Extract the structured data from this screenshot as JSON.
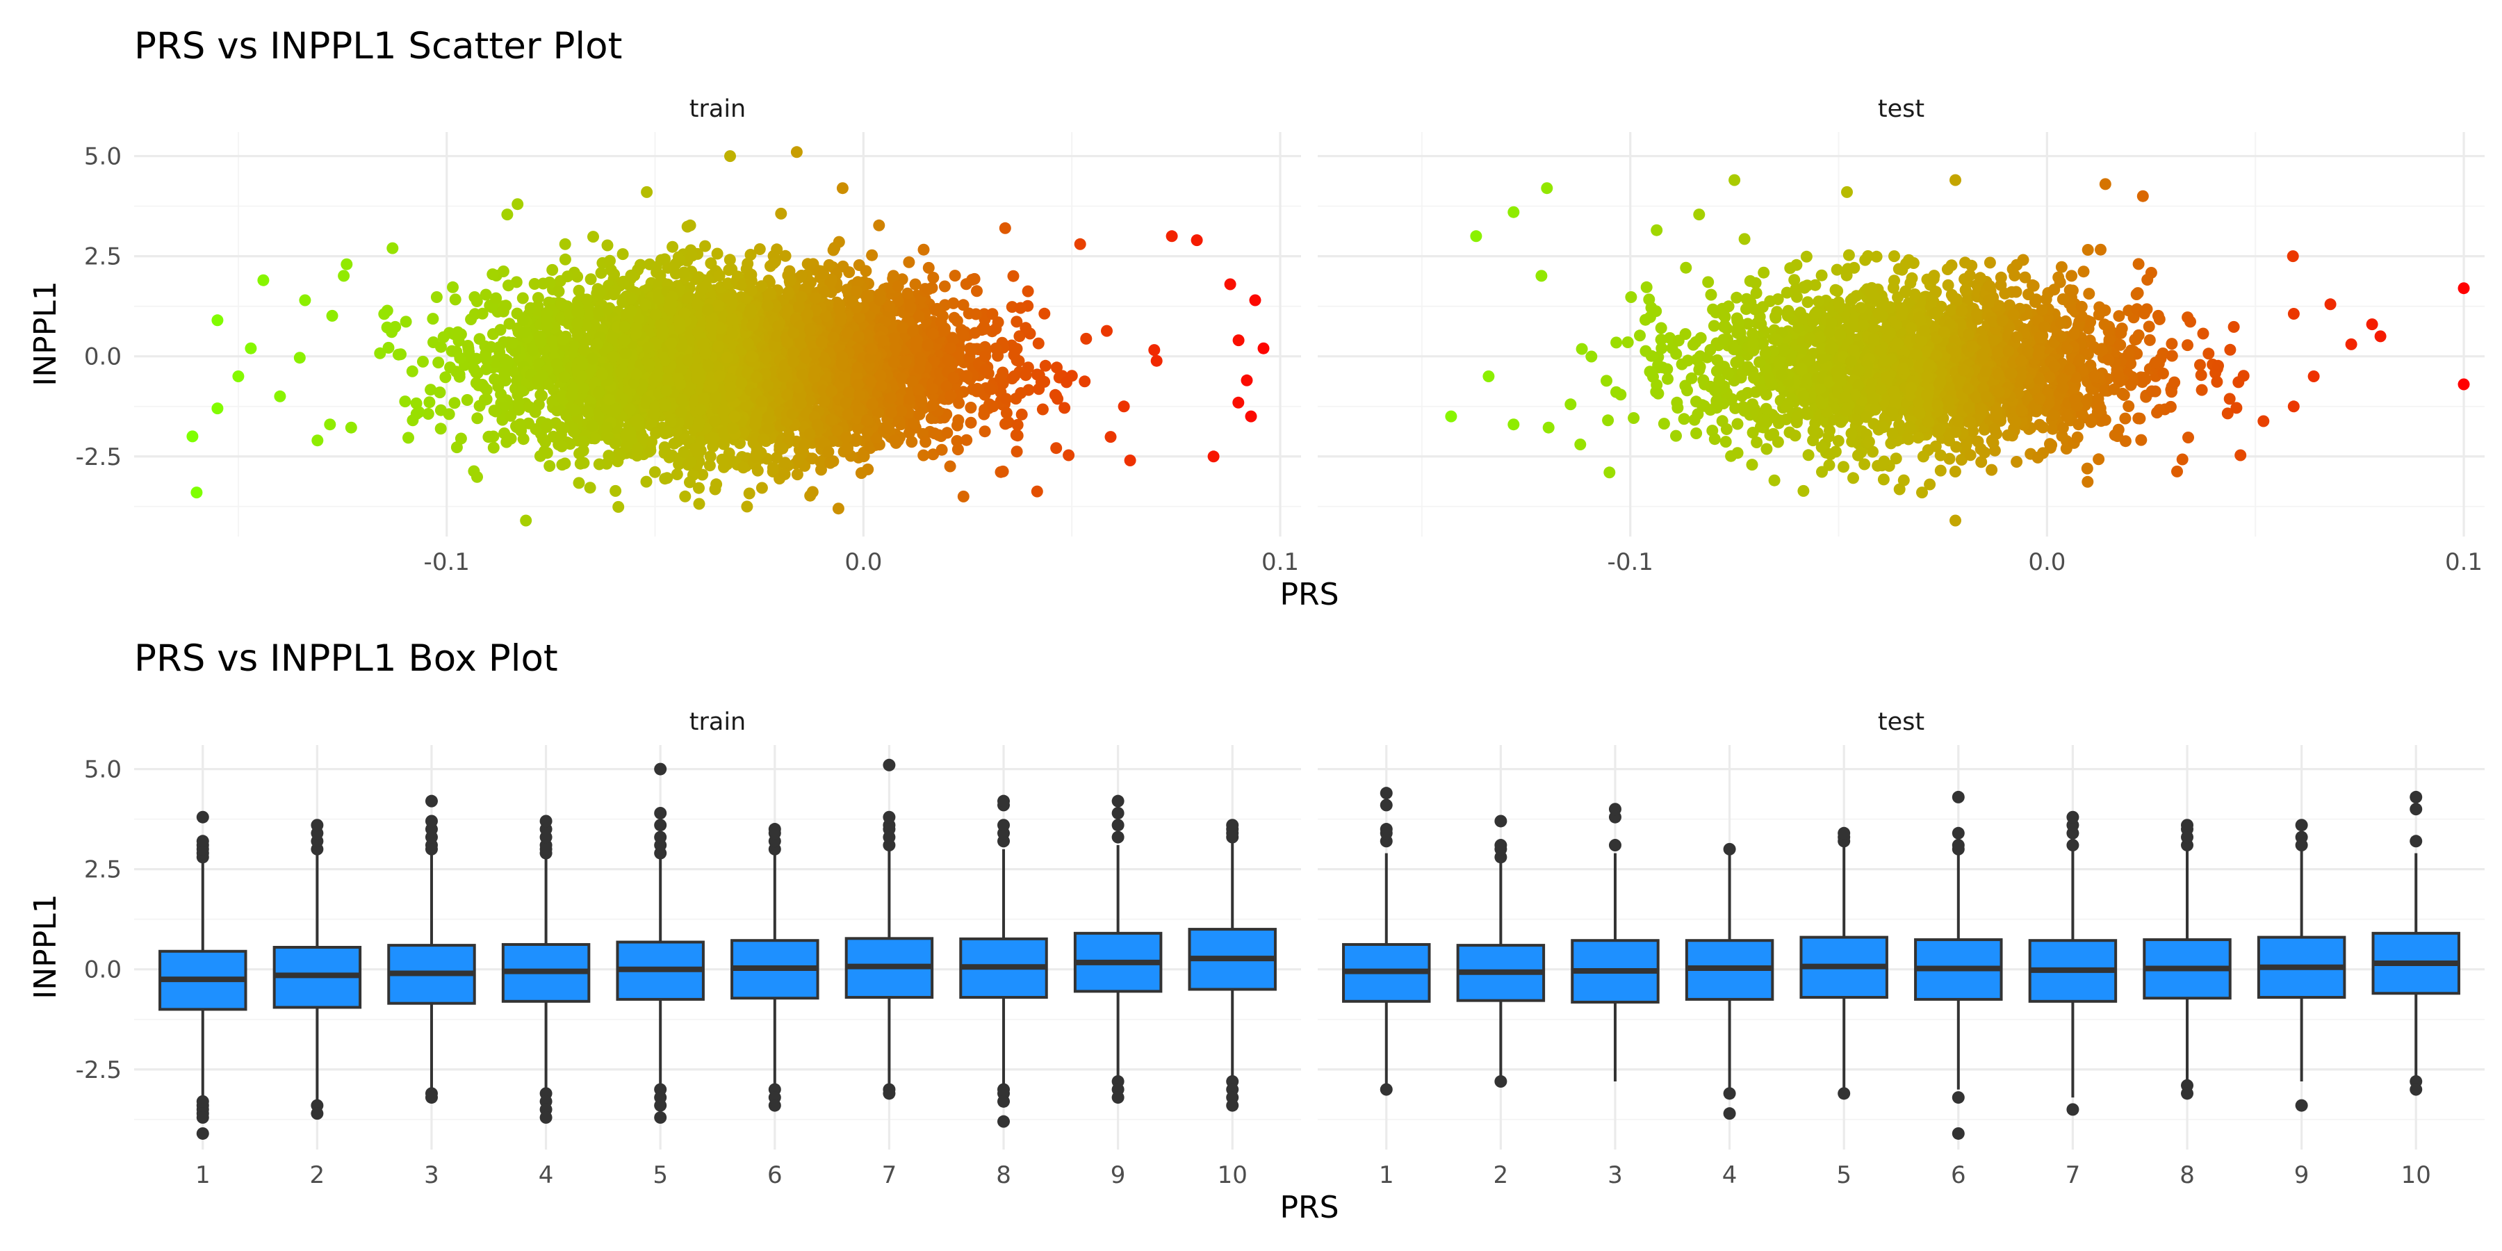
{
  "chart_data": [
    {
      "type": "scatter",
      "title": "PRS vs INPPL1 Scatter Plot",
      "xlabel": "PRS",
      "ylabel": "INPPL1",
      "xlim": [
        -0.175,
        0.105
      ],
      "ylim": [
        -4.5,
        5.6
      ],
      "x_ticks": [
        -0.1,
        0.0,
        0.1
      ],
      "x_tick_labels": [
        "-0.1",
        "0.0",
        "0.1"
      ],
      "y_ticks": [
        -2.5,
        0.0,
        2.5,
        5.0
      ],
      "y_tick_labels": [
        "-2.5",
        "0.0",
        "2.5",
        "5.0"
      ],
      "grid": true,
      "legend": "none",
      "color_scale": {
        "low": "#7fff00",
        "mid": "#c0b000",
        "high": "#ff0000"
      },
      "facets": [
        {
          "label": "train",
          "cloud": {
            "x_center": -0.03,
            "x_sd": 0.028,
            "y_center": -0.2,
            "y_sd": 1.05,
            "n_points": 5200
          },
          "points": [
            {
              "x": -0.16,
              "y": -3.4
            },
            {
              "x": -0.161,
              "y": -2.0
            },
            {
              "x": -0.155,
              "y": 0.9
            },
            {
              "x": -0.155,
              "y": -1.3
            },
            {
              "x": -0.15,
              "y": -0.5
            },
            {
              "x": -0.147,
              "y": 0.2
            },
            {
              "x": -0.144,
              "y": 1.9
            },
            {
              "x": -0.14,
              "y": -1.0
            },
            {
              "x": -0.134,
              "y": 1.4
            },
            {
              "x": -0.131,
              "y": -2.1
            },
            {
              "x": -0.128,
              "y": -1.7
            },
            {
              "x": -0.124,
              "y": 2.3
            },
            {
              "x": -0.113,
              "y": 2.7
            },
            {
              "x": -0.083,
              "y": 3.8
            },
            {
              "x": -0.081,
              "y": -4.1
            },
            {
              "x": -0.052,
              "y": 4.1
            },
            {
              "x": -0.032,
              "y": 5.0
            },
            {
              "x": -0.016,
              "y": 5.1
            },
            {
              "x": -0.005,
              "y": 4.2
            },
            {
              "x": -0.006,
              "y": -3.8
            },
            {
              "x": 0.024,
              "y": -3.5
            },
            {
              "x": 0.034,
              "y": 3.2
            },
            {
              "x": 0.052,
              "y": 2.8
            },
            {
              "x": 0.064,
              "y": -2.6
            },
            {
              "x": 0.074,
              "y": 3.0
            },
            {
              "x": 0.08,
              "y": 2.9
            },
            {
              "x": 0.084,
              "y": -2.5
            },
            {
              "x": 0.088,
              "y": 1.8
            },
            {
              "x": 0.09,
              "y": 0.4
            },
            {
              "x": 0.092,
              "y": -0.6
            },
            {
              "x": 0.094,
              "y": 1.4
            },
            {
              "x": 0.093,
              "y": -1.5
            },
            {
              "x": 0.096,
              "y": 0.2
            }
          ]
        },
        {
          "label": "test",
          "cloud": {
            "x_center": -0.03,
            "x_sd": 0.027,
            "y_center": -0.2,
            "y_sd": 1.05,
            "n_points": 2300
          },
          "points": [
            {
              "x": -0.143,
              "y": -1.5
            },
            {
              "x": -0.137,
              "y": 3.0
            },
            {
              "x": -0.134,
              "y": -0.5
            },
            {
              "x": -0.128,
              "y": 3.6
            },
            {
              "x": -0.128,
              "y": -1.7
            },
            {
              "x": -0.12,
              "y": 4.2
            },
            {
              "x": -0.112,
              "y": -2.2
            },
            {
              "x": -0.105,
              "y": -2.9
            },
            {
              "x": -0.075,
              "y": 4.4
            },
            {
              "x": -0.048,
              "y": 4.1
            },
            {
              "x": -0.03,
              "y": -3.4
            },
            {
              "x": -0.022,
              "y": 4.4
            },
            {
              "x": -0.022,
              "y": -4.1
            },
            {
              "x": 0.014,
              "y": 4.3
            },
            {
              "x": 0.023,
              "y": 4.0
            },
            {
              "x": 0.059,
              "y": 2.5
            },
            {
              "x": 0.064,
              "y": -0.5
            },
            {
              "x": 0.068,
              "y": 1.3
            },
            {
              "x": 0.073,
              "y": 0.3
            },
            {
              "x": 0.078,
              "y": 0.8
            },
            {
              "x": 0.08,
              "y": 0.5
            },
            {
              "x": 0.1,
              "y": 1.7
            },
            {
              "x": 0.1,
              "y": -0.7
            }
          ]
        }
      ]
    },
    {
      "type": "box",
      "title": "PRS vs INPPL1 Box Plot",
      "xlabel": "PRS",
      "ylabel": "INPPL1",
      "categories": [
        "1",
        "2",
        "3",
        "4",
        "5",
        "6",
        "7",
        "8",
        "9",
        "10"
      ],
      "ylim": [
        -4.5,
        5.6
      ],
      "y_ticks": [
        -2.5,
        0.0,
        2.5,
        5.0
      ],
      "y_tick_labels": [
        "-2.5",
        "0.0",
        "2.5",
        "5.0"
      ],
      "grid": true,
      "fill_color": "#1e90ff",
      "facets": [
        {
          "label": "train",
          "boxes": [
            {
              "q1": -1.0,
              "median": -0.25,
              "q3": 0.45,
              "whisker_low": -3.2,
              "whisker_high": 2.7,
              "outliers": [
                -3.3,
                -3.4,
                -3.5,
                -3.6,
                -3.7,
                -4.1,
                2.8,
                2.9,
                3.0,
                3.1,
                3.2,
                3.8
              ]
            },
            {
              "q1": -0.95,
              "median": -0.15,
              "q3": 0.55,
              "whisker_low": -3.3,
              "whisker_high": 2.9,
              "outliers": [
                -3.4,
                -3.6,
                3.0,
                3.2,
                3.4,
                3.6
              ]
            },
            {
              "q1": -0.85,
              "median": -0.1,
              "q3": 0.6,
              "whisker_low": -3.0,
              "whisker_high": 2.9,
              "outliers": [
                -3.1,
                -3.2,
                3.0,
                3.1,
                3.3,
                3.5,
                3.7,
                4.2
              ]
            },
            {
              "q1": -0.8,
              "median": -0.05,
              "q3": 0.62,
              "whisker_low": -3.0,
              "whisker_high": 2.8,
              "outliers": [
                -3.1,
                -3.3,
                -3.5,
                -3.7,
                2.9,
                3.0,
                3.1,
                3.3,
                3.5,
                3.7
              ]
            },
            {
              "q1": -0.75,
              "median": 0.0,
              "q3": 0.68,
              "whisker_low": -2.9,
              "whisker_high": 2.8,
              "outliers": [
                -3.0,
                -3.2,
                -3.4,
                -3.7,
                2.9,
                3.1,
                3.3,
                3.6,
                3.9,
                5.0
              ]
            },
            {
              "q1": -0.72,
              "median": 0.03,
              "q3": 0.72,
              "whisker_low": -2.9,
              "whisker_high": 2.9,
              "outliers": [
                -3.0,
                -3.2,
                -3.4,
                3.0,
                3.2,
                3.4,
                3.5
              ]
            },
            {
              "q1": -0.7,
              "median": 0.07,
              "q3": 0.77,
              "whisker_low": -2.9,
              "whisker_high": 3.0,
              "outliers": [
                -3.0,
                -3.1,
                3.1,
                3.3,
                3.5,
                3.6,
                3.8,
                5.1
              ]
            },
            {
              "q1": -0.7,
              "median": 0.06,
              "q3": 0.76,
              "whisker_low": -2.9,
              "whisker_high": 3.0,
              "outliers": [
                -3.0,
                -3.1,
                -3.3,
                -3.8,
                3.2,
                3.4,
                3.6,
                4.1,
                4.2
              ]
            },
            {
              "q1": -0.55,
              "median": 0.17,
              "q3": 0.9,
              "whisker_low": -2.7,
              "whisker_high": 3.1,
              "outliers": [
                -2.8,
                -3.0,
                -3.2,
                3.3,
                3.6,
                3.9,
                4.2
              ]
            },
            {
              "q1": -0.5,
              "median": 0.27,
              "q3": 1.0,
              "whisker_low": -2.7,
              "whisker_high": 3.2,
              "outliers": [
                -2.8,
                -3.0,
                -3.2,
                -3.4,
                3.3,
                3.4,
                3.5,
                3.6
              ]
            }
          ]
        },
        {
          "label": "test",
          "boxes": [
            {
              "q1": -0.8,
              "median": -0.05,
              "q3": 0.62,
              "whisker_low": -3.0,
              "whisker_high": 2.9,
              "outliers": [
                -3.0,
                3.2,
                3.4,
                3.5,
                4.1,
                4.4
              ]
            },
            {
              "q1": -0.78,
              "median": -0.07,
              "q3": 0.6,
              "whisker_low": -2.8,
              "whisker_high": 2.7,
              "outliers": [
                -2.8,
                2.8,
                3.0,
                3.1,
                3.7
              ]
            },
            {
              "q1": -0.82,
              "median": -0.04,
              "q3": 0.72,
              "whisker_low": -2.8,
              "whisker_high": 2.9,
              "outliers": [
                3.1,
                3.8,
                4.0
              ]
            },
            {
              "q1": -0.75,
              "median": 0.03,
              "q3": 0.72,
              "whisker_low": -3.0,
              "whisker_high": 2.9,
              "outliers": [
                -3.1,
                -3.6,
                3.0
              ]
            },
            {
              "q1": -0.7,
              "median": 0.07,
              "q3": 0.8,
              "whisker_low": -3.0,
              "whisker_high": 3.1,
              "outliers": [
                -3.1,
                3.2,
                3.3,
                3.4
              ]
            },
            {
              "q1": -0.75,
              "median": 0.02,
              "q3": 0.74,
              "whisker_low": -3.0,
              "whisker_high": 2.9,
              "outliers": [
                -3.2,
                -4.1,
                3.0,
                3.1,
                3.4,
                4.3
              ]
            },
            {
              "q1": -0.8,
              "median": -0.02,
              "q3": 0.72,
              "whisker_low": -3.2,
              "whisker_high": 3.0,
              "outliers": [
                -3.5,
                3.1,
                3.4,
                3.6,
                3.8
              ]
            },
            {
              "q1": -0.72,
              "median": 0.02,
              "q3": 0.74,
              "whisker_low": -2.8,
              "whisker_high": 3.0,
              "outliers": [
                -2.9,
                -3.1,
                3.1,
                3.3,
                3.5,
                3.6
              ]
            },
            {
              "q1": -0.7,
              "median": 0.05,
              "q3": 0.8,
              "whisker_low": -2.8,
              "whisker_high": 3.0,
              "outliers": [
                -3.4,
                3.1,
                3.3,
                3.6
              ]
            },
            {
              "q1": -0.6,
              "median": 0.15,
              "q3": 0.9,
              "whisker_low": -2.7,
              "whisker_high": 2.9,
              "outliers": [
                -2.8,
                -3.0,
                3.2,
                4.0,
                4.3
              ]
            }
          ]
        }
      ]
    }
  ]
}
